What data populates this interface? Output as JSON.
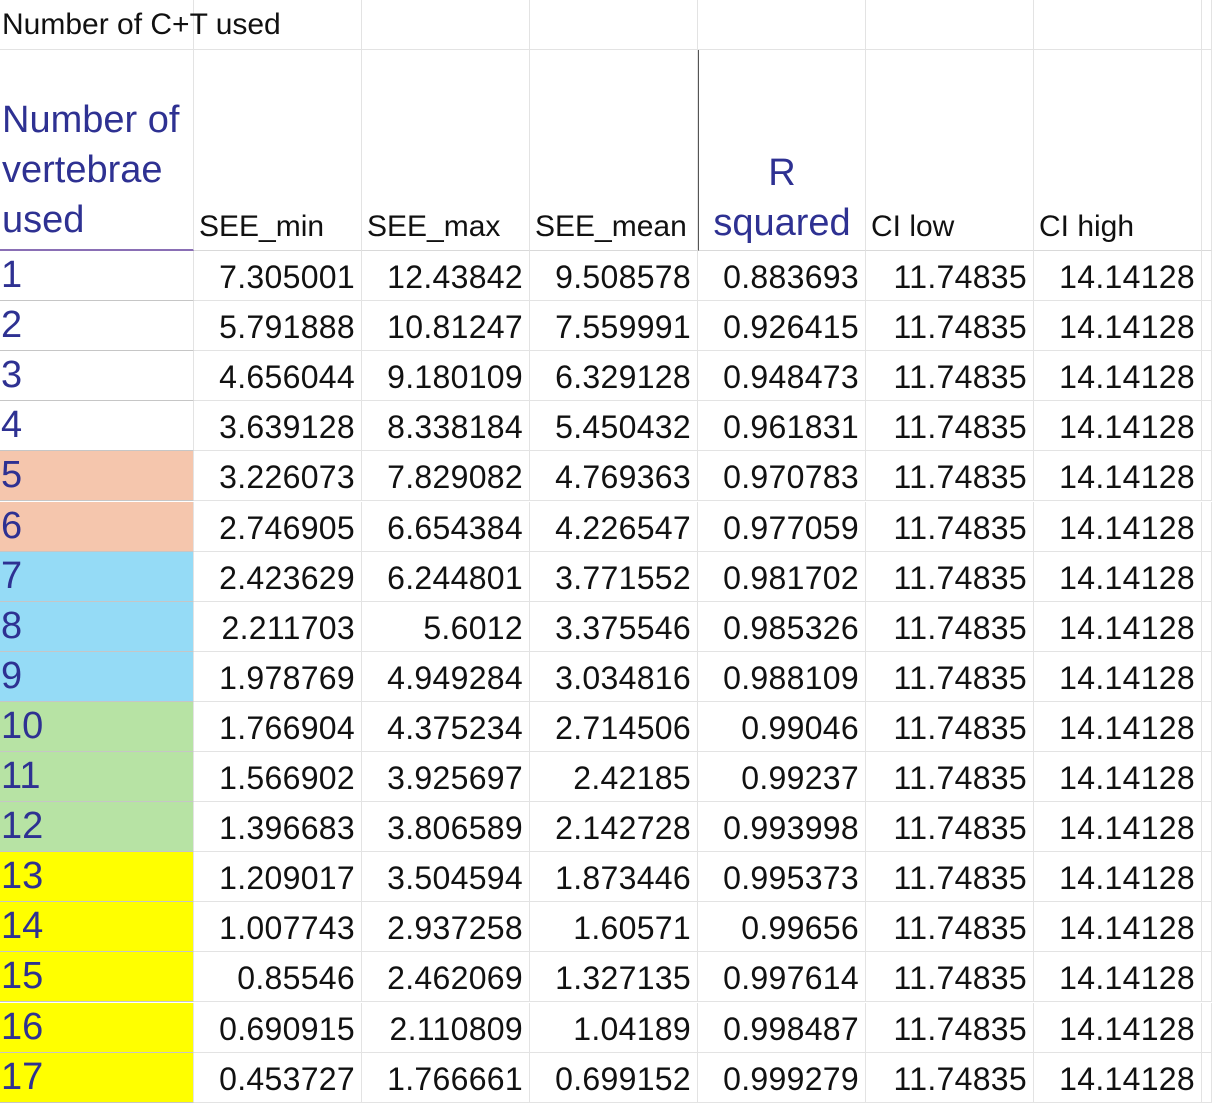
{
  "title": "Number of C+T used",
  "headers": {
    "vertebrae": "Number of vertebrae used",
    "see_min": "SEE_min",
    "see_max": "SEE_max",
    "see_mean": "SEE_mean",
    "r_squared": "R squared",
    "ci_low": "CI low",
    "ci_high": "CI high"
  },
  "colors": {
    "orange": "#f5c6ad",
    "blue": "#95dbf6",
    "green": "#b7e3a4",
    "yellow": "#ffff00",
    "index_text": "#2e3192"
  },
  "rows": [
    {
      "n": "1",
      "see_min": "7.305001",
      "see_max": "12.43842",
      "see_mean": "9.508578",
      "r2": "0.883693",
      "ci_low": "11.74835",
      "ci_high": "14.14128",
      "color": "none"
    },
    {
      "n": "2",
      "see_min": "5.791888",
      "see_max": "10.81247",
      "see_mean": "7.559991",
      "r2": "0.926415",
      "ci_low": "11.74835",
      "ci_high": "14.14128",
      "color": "none"
    },
    {
      "n": "3",
      "see_min": "4.656044",
      "see_max": "9.180109",
      "see_mean": "6.329128",
      "r2": "0.948473",
      "ci_low": "11.74835",
      "ci_high": "14.14128",
      "color": "none"
    },
    {
      "n": "4",
      "see_min": "3.639128",
      "see_max": "8.338184",
      "see_mean": "5.450432",
      "r2": "0.961831",
      "ci_low": "11.74835",
      "ci_high": "14.14128",
      "color": "none"
    },
    {
      "n": "5",
      "see_min": "3.226073",
      "see_max": "7.829082",
      "see_mean": "4.769363",
      "r2": "0.970783",
      "ci_low": "11.74835",
      "ci_high": "14.14128",
      "color": "orange"
    },
    {
      "n": "6",
      "see_min": "2.746905",
      "see_max": "6.654384",
      "see_mean": "4.226547",
      "r2": "0.977059",
      "ci_low": "11.74835",
      "ci_high": "14.14128",
      "color": "orange"
    },
    {
      "n": "7",
      "see_min": "2.423629",
      "see_max": "6.244801",
      "see_mean": "3.771552",
      "r2": "0.981702",
      "ci_low": "11.74835",
      "ci_high": "14.14128",
      "color": "blue"
    },
    {
      "n": "8",
      "see_min": "2.211703",
      "see_max": "5.6012",
      "see_mean": "3.375546",
      "r2": "0.985326",
      "ci_low": "11.74835",
      "ci_high": "14.14128",
      "color": "blue"
    },
    {
      "n": "9",
      "see_min": "1.978769",
      "see_max": "4.949284",
      "see_mean": "3.034816",
      "r2": "0.988109",
      "ci_low": "11.74835",
      "ci_high": "14.14128",
      "color": "blue"
    },
    {
      "n": "10",
      "see_min": "1.766904",
      "see_max": "4.375234",
      "see_mean": "2.714506",
      "r2": "0.99046",
      "ci_low": "11.74835",
      "ci_high": "14.14128",
      "color": "green"
    },
    {
      "n": "11",
      "see_min": "1.566902",
      "see_max": "3.925697",
      "see_mean": "2.42185",
      "r2": "0.99237",
      "ci_low": "11.74835",
      "ci_high": "14.14128",
      "color": "green"
    },
    {
      "n": "12",
      "see_min": "1.396683",
      "see_max": "3.806589",
      "see_mean": "2.142728",
      "r2": "0.993998",
      "ci_low": "11.74835",
      "ci_high": "14.14128",
      "color": "green"
    },
    {
      "n": "13",
      "see_min": "1.209017",
      "see_max": "3.504594",
      "see_mean": "1.873446",
      "r2": "0.995373",
      "ci_low": "11.74835",
      "ci_high": "14.14128",
      "color": "yellow"
    },
    {
      "n": "14",
      "see_min": "1.007743",
      "see_max": "2.937258",
      "see_mean": "1.60571",
      "r2": "0.99656",
      "ci_low": "11.74835",
      "ci_high": "14.14128",
      "color": "yellow"
    },
    {
      "n": "15",
      "see_min": "0.85546",
      "see_max": "2.462069",
      "see_mean": "1.327135",
      "r2": "0.997614",
      "ci_low": "11.74835",
      "ci_high": "14.14128",
      "color": "yellow"
    },
    {
      "n": "16",
      "see_min": "0.690915",
      "see_max": "2.110809",
      "see_mean": "1.04189",
      "r2": "0.998487",
      "ci_low": "11.74835",
      "ci_high": "14.14128",
      "color": "yellow"
    },
    {
      "n": "17",
      "see_min": "0.453727",
      "see_max": "1.766661",
      "see_mean": "0.699152",
      "r2": "0.999279",
      "ci_low": "11.74835",
      "ci_high": "14.14128",
      "color": "yellow"
    }
  ]
}
